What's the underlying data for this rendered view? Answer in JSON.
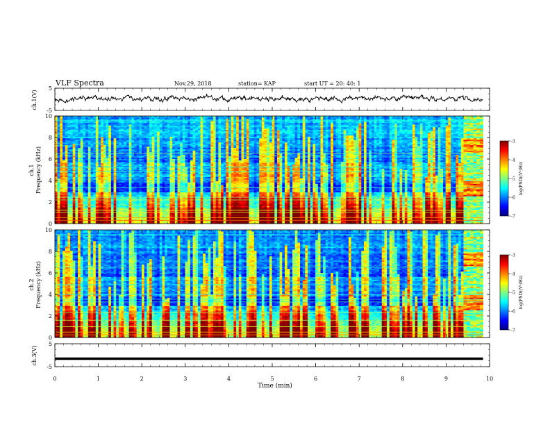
{
  "header": {
    "title": "VLF Spectra",
    "date": "Nov.29, 2018",
    "station": "station= KAP",
    "start_time": "start UT =  20: 40: 1"
  },
  "panels": {
    "ch1_wave_label": "ch.1(V)",
    "ch1_spec_label_line1": "ch.1",
    "ch1_spec_label_line2": "Frequency (kHz)",
    "ch2_spec_label_line1": "ch.2",
    "ch2_spec_label_line2": "Frequency (kHz)",
    "ch3_wave_label": "ch.3(V)",
    "xlabel": "Time (min)",
    "colorbar_label": "log(PSD)(V²/Hz)"
  },
  "chart_data": [
    {
      "type": "line",
      "name": "ch1-waveform",
      "ylabel": "ch.1(V)",
      "xlim": [
        0,
        10
      ],
      "ylim": [
        -5,
        5
      ],
      "yticks": [
        "5",
        "-5"
      ],
      "data_end_min": 9.85,
      "mean_value": 0.3,
      "fluctuation_amplitude": 1.4
    },
    {
      "type": "heatmap",
      "name": "ch1-spectrogram",
      "ylabel": "Frequency (kHz)",
      "xlim": [
        0,
        10
      ],
      "ylim": [
        0,
        10
      ],
      "yticks": [
        "0",
        "2",
        "4",
        "6",
        "8",
        "10"
      ],
      "colorscale": [
        "#00007f",
        "#0000ff",
        "#0080ff",
        "#00ffff",
        "#80ff80",
        "#ffff00",
        "#ff8000",
        "#ff0000",
        "#7f0000"
      ],
      "color_range": [
        -7,
        -3
      ],
      "colorbar_ticks": [
        "-3",
        "-4",
        "-5",
        "-6",
        "-7"
      ],
      "data_end_min": 9.85,
      "changed_segment_start_min": 9.4
    },
    {
      "type": "heatmap",
      "name": "ch2-spectrogram",
      "ylabel": "Frequency (kHz)",
      "xlim": [
        0,
        10
      ],
      "ylim": [
        0,
        10
      ],
      "yticks": [
        "0",
        "2",
        "4",
        "6",
        "8",
        "10"
      ],
      "colorscale": [
        "#00007f",
        "#0000ff",
        "#0080ff",
        "#00ffff",
        "#80ff80",
        "#ffff00",
        "#ff8000",
        "#ff0000",
        "#7f0000"
      ],
      "color_range": [
        -7,
        -3
      ],
      "colorbar_ticks": [
        "-3",
        "-4",
        "-5",
        "-6",
        "-7"
      ],
      "data_end_min": 9.85,
      "changed_segment_start_min": 9.4
    },
    {
      "type": "line",
      "name": "ch3-waveform",
      "ylabel": "ch.3(V)",
      "xlim": [
        0,
        10
      ],
      "ylim": [
        -5,
        5
      ],
      "yticks": [
        "5",
        "-5"
      ],
      "data_end_min": 9.85,
      "constant_value": -1.5
    }
  ],
  "x_axis": {
    "label": "Time (min)",
    "range": [
      0,
      10
    ],
    "ticks": [
      "0",
      "1",
      "2",
      "3",
      "4",
      "5",
      "6",
      "7",
      "8",
      "9",
      "10"
    ]
  }
}
